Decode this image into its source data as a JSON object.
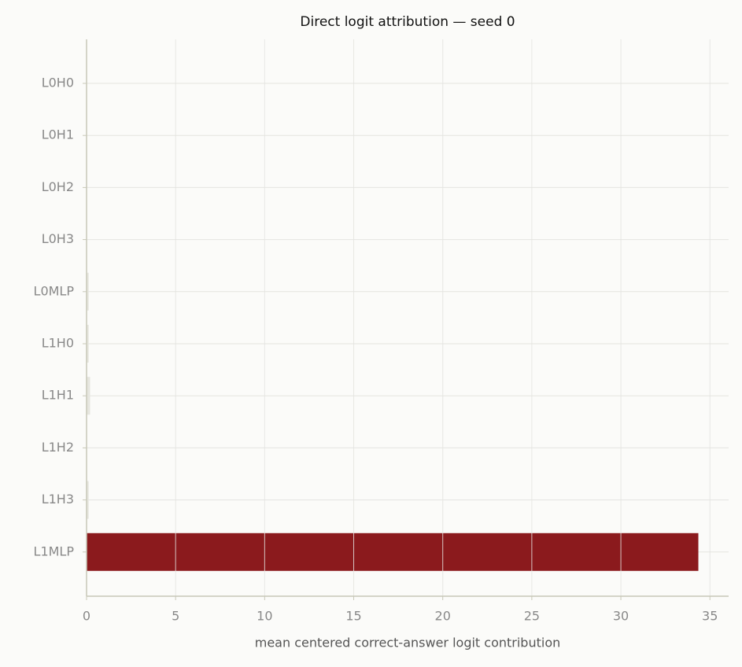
{
  "chart_data": {
    "type": "barh",
    "title": "Direct logit attribution — seed 0",
    "x_label": "mean centered correct-answer logit contribution",
    "categories": [
      "L0H0",
      "L0H1",
      "L0H2",
      "L0H3",
      "L0MLP",
      "L1H0",
      "L1H1",
      "L1H2",
      "L1H3",
      "L1MLP"
    ],
    "values": [
      0,
      0,
      0,
      0,
      0.12,
      0.12,
      0.2,
      0,
      0.12,
      34.35
    ],
    "colors": [
      "#e6e6df",
      "#e6e6df",
      "#e6e6df",
      "#e6e6df",
      "#e6e6df",
      "#e6e6df",
      "#e6e6df",
      "#e6e6df",
      "#e6e6df",
      "#8b1a1d"
    ],
    "xlim": [
      0,
      36.05
    ],
    "xticks": [
      0,
      5,
      10,
      15,
      20,
      25,
      30,
      35
    ],
    "grid": true
  }
}
